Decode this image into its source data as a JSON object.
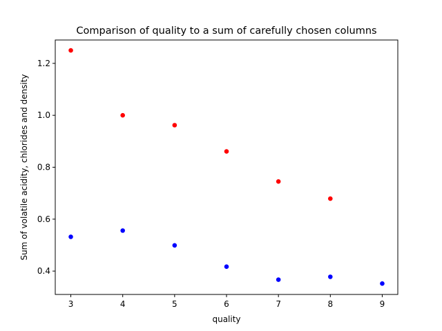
{
  "chart_data": {
    "type": "scatter",
    "title": "Comparison of quality to a sum of carefully chosen columns",
    "xlabel": "quality",
    "ylabel": "Sum of volatile acidity, chlorides and density",
    "xlim": [
      2.7,
      9.3
    ],
    "ylim": [
      0.31,
      1.29
    ],
    "xticks": [
      3,
      4,
      5,
      6,
      7,
      8,
      9
    ],
    "yticks": [
      0.4,
      0.6,
      0.8,
      1.0,
      1.2
    ],
    "ytick_labels": [
      "0.4",
      "0.6",
      "0.8",
      "1.0",
      "1.2"
    ],
    "grid": false,
    "series": [
      {
        "color": "#ff0000",
        "x": [
          3,
          4,
          5,
          6,
          7,
          8
        ],
        "y": [
          1.25,
          1.0,
          0.962,
          0.861,
          0.745,
          0.679
        ]
      },
      {
        "color": "#0000ff",
        "x": [
          3,
          4,
          5,
          6,
          7,
          8,
          9
        ],
        "y": [
          0.532,
          0.556,
          0.499,
          0.417,
          0.367,
          0.378,
          0.352
        ]
      }
    ]
  }
}
